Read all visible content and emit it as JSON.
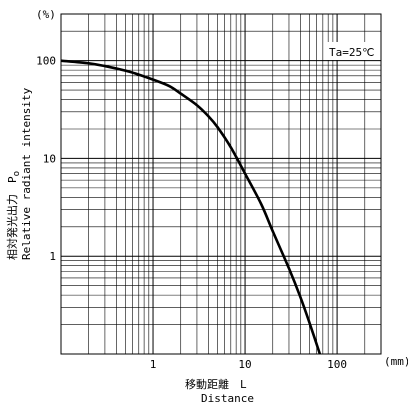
{
  "chart_data": {
    "type": "line",
    "title": "",
    "xlabel": "移動距離　L",
    "xlabel_en": "Distance",
    "ylabel": "相対発光出力　P",
    "ylabel_subscript": "o",
    "ylabel_en": "Relative radiant intensity",
    "x_unit": "(mm)",
    "y_unit": "(%)",
    "x_scale": "log",
    "y_scale": "log",
    "xlim": [
      0.1,
      300
    ],
    "ylim": [
      0.1,
      300
    ],
    "grid": true,
    "x_tick_labels": [
      "1",
      "10",
      "100"
    ],
    "y_tick_labels": [
      "1",
      "10",
      "100"
    ],
    "annotation": "Ta=25℃",
    "series": [
      {
        "x": [
          0.1,
          0.2,
          0.3,
          0.5,
          0.7,
          1,
          1.5,
          2,
          3,
          4,
          5,
          7,
          10,
          15,
          20,
          30,
          40,
          50,
          65
        ],
        "values": [
          100,
          94,
          88,
          79,
          72,
          64,
          55,
          46,
          35,
          27,
          21,
          13,
          7,
          3.4,
          1.8,
          0.75,
          0.38,
          0.21,
          0.1
        ]
      }
    ]
  }
}
